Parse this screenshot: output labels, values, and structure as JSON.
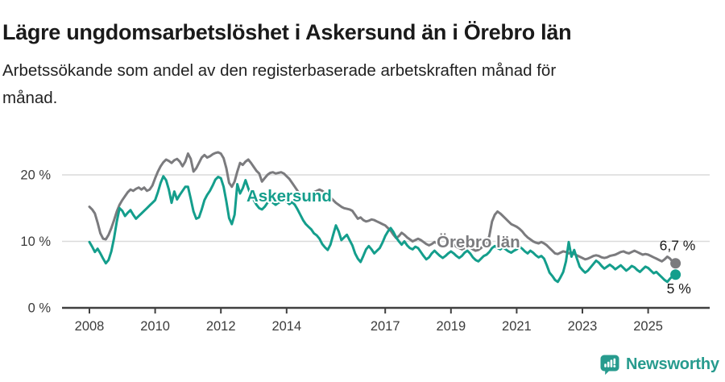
{
  "header": {
    "title": "Lägre ungdomsarbetslöshet i Askersund än i Örebro län",
    "subtitle_lines": [
      "Arbetssökande som andel av den registerbaserade arbetskraften månad för",
      "månad."
    ]
  },
  "footer": {
    "brand": "Newsworthy",
    "brand_color": "#279b8e"
  },
  "chart_data": {
    "type": "line",
    "title": "",
    "unit": "%",
    "frequency": "monthly",
    "start": {
      "year": 2008,
      "month": 1
    },
    "end": {
      "year": 2025,
      "month": 11
    },
    "ylim": [
      0,
      25
    ],
    "grid": "horizontal",
    "y_ticks": [
      {
        "value": 0,
        "label": "0 %"
      },
      {
        "value": 10,
        "label": "10 %"
      },
      {
        "value": 20,
        "label": "20 %"
      }
    ],
    "x_ticks": [
      {
        "value": 2008,
        "label": "2008"
      },
      {
        "value": 2010,
        "label": "2010"
      },
      {
        "value": 2012,
        "label": "2012"
      },
      {
        "value": 2014,
        "label": "2014"
      },
      {
        "value": 2017,
        "label": "2017"
      },
      {
        "value": 2019,
        "label": "2019"
      },
      {
        "value": 2021,
        "label": "2021"
      },
      {
        "value": 2023,
        "label": "2023"
      },
      {
        "value": 2025,
        "label": "2025"
      }
    ],
    "colors": {
      "askersund": "#149e8c",
      "orebro_lan": "#7b7b7e",
      "axis": "#404040",
      "grid": "#dadada",
      "tick_text": "#3c3c3c",
      "value_label_text": "#1a1a1a"
    },
    "series": [
      {
        "name": "Askersund",
        "label": "Askersund",
        "color": "#149e8c",
        "end_value_label": "5 %",
        "values": [
          9.9,
          9.2,
          8.4,
          8.9,
          8.2,
          7.4,
          6.7,
          7.2,
          8.5,
          10.5,
          13.0,
          15.0,
          14.6,
          13.8,
          14.3,
          14.7,
          14.0,
          13.4,
          13.8,
          14.2,
          14.6,
          15.0,
          15.4,
          15.8,
          16.2,
          17.4,
          18.8,
          19.8,
          19.2,
          17.8,
          15.8,
          17.5,
          16.3,
          17.0,
          17.6,
          18.2,
          18.2,
          16.4,
          14.5,
          13.4,
          13.6,
          14.8,
          16.2,
          17.0,
          17.6,
          18.4,
          19.3,
          19.7,
          19.5,
          18.2,
          16.0,
          13.5,
          12.6,
          14.0,
          18.6,
          17.2,
          18.0,
          19.2,
          18.0,
          16.8,
          16.2,
          15.5,
          15.0,
          14.8,
          15.2,
          15.8,
          16.2,
          15.8,
          15.5,
          15.8,
          16.0,
          16.2,
          16.0,
          15.6,
          15.9,
          15.5,
          14.8,
          14.0,
          13.2,
          12.6,
          12.2,
          11.8,
          11.2,
          10.9,
          10.4,
          9.6,
          9.1,
          8.7,
          9.5,
          11.0,
          12.4,
          11.5,
          10.2,
          10.6,
          11.0,
          10.2,
          9.4,
          8.2,
          7.4,
          6.9,
          7.8,
          8.8,
          9.3,
          8.8,
          8.2,
          8.6,
          9.0,
          9.8,
          10.8,
          11.5,
          12.0,
          11.4,
          10.6,
          10.0,
          9.5,
          10.0,
          9.4,
          9.0,
          8.8,
          9.2,
          9.0,
          8.4,
          7.8,
          7.3,
          7.6,
          8.2,
          8.6,
          8.2,
          7.8,
          7.5,
          7.8,
          8.2,
          8.5,
          8.2,
          7.8,
          7.5,
          7.8,
          8.3,
          8.6,
          8.2,
          7.6,
          7.2,
          7.0,
          7.4,
          7.8,
          8.0,
          8.4,
          9.0,
          9.3,
          9.0,
          8.8,
          9.1,
          8.8,
          8.5,
          8.3,
          8.6,
          8.8,
          9.2,
          8.9,
          8.5,
          8.2,
          8.6,
          8.3,
          7.9,
          7.6,
          7.8,
          7.4,
          6.4,
          5.3,
          4.8,
          4.2,
          3.9,
          4.6,
          5.4,
          7.0,
          9.9,
          7.7,
          8.7,
          7.4,
          6.2,
          5.7,
          5.3,
          5.6,
          6.1,
          6.6,
          7.1,
          6.8,
          6.3,
          5.9,
          6.2,
          6.5,
          6.2,
          5.8,
          6.1,
          6.4,
          6.0,
          5.6,
          5.9,
          6.3,
          6.1,
          5.7,
          5.4,
          5.8,
          6.2,
          6.0,
          5.6,
          5.2,
          5.4,
          5.0,
          4.6,
          4.2,
          3.9,
          4.4,
          4.8,
          5.0
        ]
      },
      {
        "name": "Örebro län",
        "label": "Örebro län",
        "color": "#7b7b7e",
        "end_value_label": "6,7 %",
        "values": [
          15.2,
          14.8,
          14.2,
          12.8,
          11.2,
          10.4,
          10.3,
          11.0,
          12.0,
          13.2,
          14.5,
          15.5,
          16.2,
          16.8,
          17.4,
          17.8,
          17.6,
          17.9,
          18.1,
          17.8,
          18.1,
          17.6,
          17.8,
          18.4,
          19.5,
          20.5,
          21.3,
          21.9,
          22.3,
          22.1,
          21.8,
          22.2,
          22.4,
          22.0,
          21.3,
          22.0,
          23.2,
          22.4,
          20.5,
          21.0,
          21.8,
          22.6,
          23.0,
          22.6,
          22.8,
          23.1,
          23.3,
          23.4,
          23.2,
          22.5,
          21.0,
          18.8,
          18.2,
          19.0,
          20.5,
          21.8,
          21.5,
          22.0,
          22.3,
          21.8,
          21.2,
          20.6,
          20.2,
          19.0,
          19.5,
          20.0,
          20.3,
          20.4,
          20.2,
          20.3,
          20.4,
          20.2,
          19.8,
          19.4,
          18.8,
          18.2,
          17.6,
          17.0,
          16.4,
          16.2,
          16.6,
          17.0,
          17.4,
          17.6,
          17.8,
          17.6,
          17.3,
          17.0,
          16.6,
          16.2,
          15.8,
          15.5,
          15.2,
          15.0,
          14.9,
          14.8,
          14.6,
          14.0,
          13.4,
          13.6,
          13.2,
          13.0,
          13.1,
          13.3,
          13.2,
          13.0,
          12.8,
          12.6,
          12.4,
          12.0,
          11.6,
          11.0,
          10.5,
          10.8,
          11.3,
          11.0,
          10.6,
          10.3,
          10.0,
          10.2,
          10.4,
          10.2,
          9.9,
          9.6,
          9.4,
          9.6,
          9.9,
          9.7,
          9.4,
          9.2,
          9.3,
          9.5,
          9.7,
          9.5,
          9.2,
          9.0,
          8.8,
          9.0,
          9.3,
          9.1,
          8.8,
          8.6,
          8.7,
          9.0,
          9.5,
          9.8,
          10.8,
          13.0,
          14.0,
          14.5,
          14.2,
          13.8,
          13.4,
          13.0,
          12.6,
          12.4,
          12.2,
          11.9,
          11.5,
          11.0,
          10.6,
          10.3,
          10.0,
          9.8,
          9.7,
          9.9,
          9.7,
          9.4,
          9.0,
          8.6,
          8.2,
          8.1,
          8.3,
          8.5,
          8.4,
          8.2,
          8.3,
          8.1,
          7.9,
          7.7,
          7.5,
          7.3,
          7.4,
          7.6,
          7.8,
          7.9,
          7.8,
          7.6,
          7.5,
          7.6,
          7.8,
          7.9,
          8.0,
          8.2,
          8.4,
          8.5,
          8.3,
          8.2,
          8.4,
          8.6,
          8.4,
          8.2,
          8.0,
          8.1,
          8.0,
          7.8,
          7.6,
          7.4,
          7.2,
          7.0,
          7.3,
          7.7,
          7.4,
          6.9,
          6.7
        ]
      }
    ]
  }
}
